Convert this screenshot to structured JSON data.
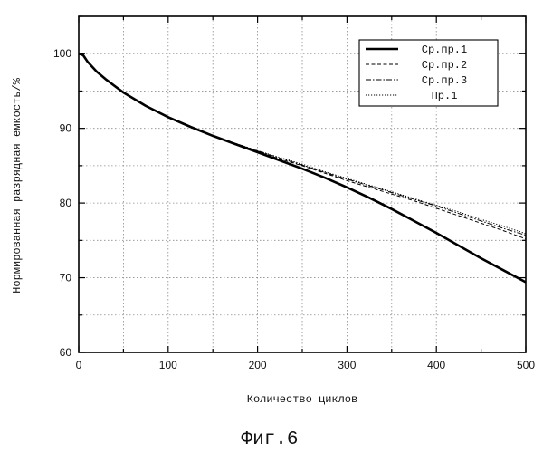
{
  "figure_caption": "Фиг.6",
  "chart_data": {
    "type": "line",
    "xlabel": "Количество циклов",
    "ylabel": "Нормированная разрядная емкость/%",
    "xlim": [
      0,
      500
    ],
    "ylim": [
      60,
      105
    ],
    "x_ticks": [
      0,
      100,
      200,
      300,
      400,
      500
    ],
    "y_ticks": [
      60,
      70,
      80,
      90,
      100
    ],
    "grid": true,
    "legend_position": "top-right",
    "series": [
      {
        "name": "Ср.пр.1",
        "style": "solid-thick",
        "color": "#000000",
        "x": [
          0,
          5,
          10,
          20,
          30,
          50,
          75,
          100,
          125,
          150,
          175,
          200,
          225,
          250,
          275,
          300,
          325,
          350,
          375,
          400,
          425,
          450,
          475,
          500
        ],
        "y": [
          100,
          99.8,
          98.9,
          97.6,
          96.6,
          94.8,
          93.0,
          91.5,
          90.2,
          89.0,
          87.9,
          86.8,
          85.7,
          84.6,
          83.4,
          82.1,
          80.7,
          79.2,
          77.6,
          76.0,
          74.3,
          72.6,
          71.0,
          69.4
        ]
      },
      {
        "name": "Ср.пр.2",
        "style": "dashed",
        "color": "#000000",
        "x": [
          0,
          5,
          10,
          20,
          30,
          50,
          75,
          100,
          125,
          150,
          175,
          200,
          225,
          250,
          275,
          300,
          325,
          350,
          375,
          400,
          425,
          450,
          475,
          500
        ],
        "y": [
          100,
          99.8,
          98.9,
          97.6,
          96.6,
          94.8,
          93.0,
          91.5,
          90.2,
          89.0,
          87.9,
          86.9,
          85.9,
          85.0,
          84.0,
          83.0,
          82.1,
          81.2,
          80.3,
          79.3,
          78.3,
          77.3,
          76.3,
          75.2
        ]
      },
      {
        "name": "Ср.пр.3",
        "style": "dash-dot",
        "color": "#000000",
        "x": [
          0,
          5,
          10,
          20,
          30,
          50,
          75,
          100,
          125,
          150,
          175,
          200,
          225,
          250,
          275,
          300,
          325,
          350,
          375,
          400,
          425,
          450,
          475,
          500
        ],
        "y": [
          100,
          99.8,
          98.9,
          97.6,
          96.6,
          94.8,
          93.0,
          91.5,
          90.2,
          89.0,
          88.0,
          87.0,
          86.0,
          85.1,
          84.1,
          83.2,
          82.3,
          81.4,
          80.5,
          79.6,
          78.6,
          77.6,
          76.6,
          75.7
        ]
      },
      {
        "name": "Пр.1",
        "style": "dotted",
        "color": "#000000",
        "x": [
          0,
          5,
          10,
          20,
          30,
          50,
          75,
          100,
          125,
          150,
          175,
          200,
          225,
          250,
          275,
          300,
          325,
          350,
          375,
          400,
          425,
          450,
          475,
          500
        ],
        "y": [
          100,
          99.8,
          98.9,
          97.6,
          96.6,
          94.8,
          93.0,
          91.5,
          90.2,
          89.0,
          88.0,
          87.0,
          86.1,
          85.2,
          84.2,
          83.3,
          82.4,
          81.5,
          80.6,
          79.7,
          78.8,
          77.8,
          76.9,
          75.9
        ]
      }
    ]
  }
}
